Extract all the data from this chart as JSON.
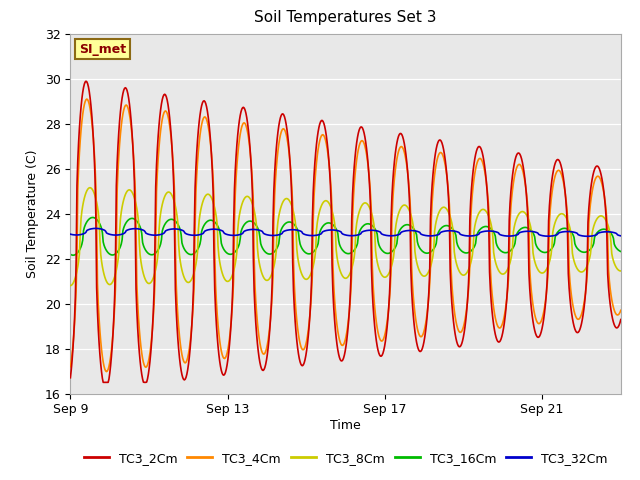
{
  "title": "Soil Temperatures Set 3",
  "xlabel": "Time",
  "ylabel": "Soil Temperature (C)",
  "ylim": [
    16,
    32
  ],
  "x_ticks_days": [
    0,
    4,
    8,
    12
  ],
  "x_tick_labels": [
    "Sep 9",
    "Sep 13",
    "Sep 17",
    "Sep 21"
  ],
  "yticks": [
    16,
    18,
    20,
    22,
    24,
    26,
    28,
    30,
    32
  ],
  "bg_color": "#e8e8e8",
  "fig_color": "#ffffff",
  "annotation_text": "SI_met",
  "annotation_bg": "#ffff99",
  "annotation_border": "#8b6914",
  "series_colors": {
    "TC3_2Cm": "#cc0000",
    "TC3_4Cm": "#ff8800",
    "TC3_8Cm": "#cccc00",
    "TC3_16Cm": "#00bb00",
    "TC3_32Cm": "#0000cc"
  }
}
